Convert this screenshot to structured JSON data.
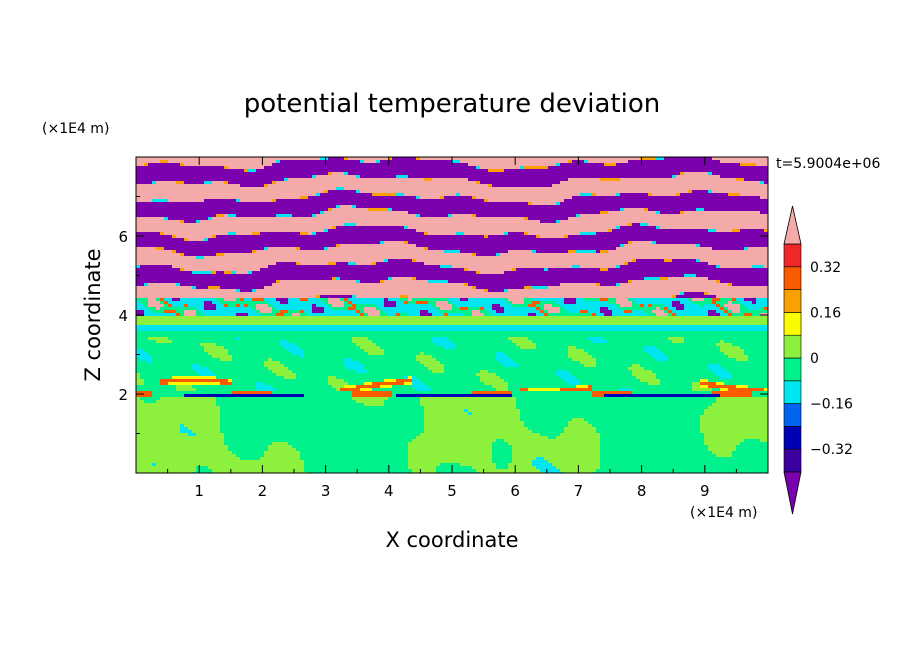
{
  "chart_data": {
    "type": "heatmap",
    "title": "potential temperature deviation",
    "time_label": "t=5.9004e+06",
    "xlabel": "X coordinate",
    "ylabel": "Z coordinate",
    "x_unit": "(×1E4 m)",
    "y_unit": "(×1E4 m)",
    "xlim": [
      0,
      10
    ],
    "ylim": [
      0,
      8
    ],
    "xticks": [
      "1",
      "2",
      "3",
      "4",
      "5",
      "6",
      "7",
      "8",
      "9"
    ],
    "yticks": [
      "2",
      "4",
      "6"
    ],
    "colorbar": {
      "levels": [
        -0.4,
        -0.32,
        -0.24,
        -0.16,
        -0.08,
        0,
        0.08,
        0.16,
        0.24,
        0.32,
        0.4
      ],
      "tick_labels": [
        "0.32",
        "0.16",
        "0",
        "−0.16",
        "−0.32"
      ],
      "tick_values": [
        0.32,
        0.16,
        0,
        -0.16,
        -0.32
      ],
      "colors": [
        "#7B00AE",
        "#3C00A0",
        "#0000B4",
        "#0064F0",
        "#00E6F0",
        "#00F08C",
        "#8CF03C",
        "#FAFA00",
        "#FAA000",
        "#FA5A00",
        "#F02828",
        "#F5AAAA"
      ],
      "extend": "both"
    }
  }
}
